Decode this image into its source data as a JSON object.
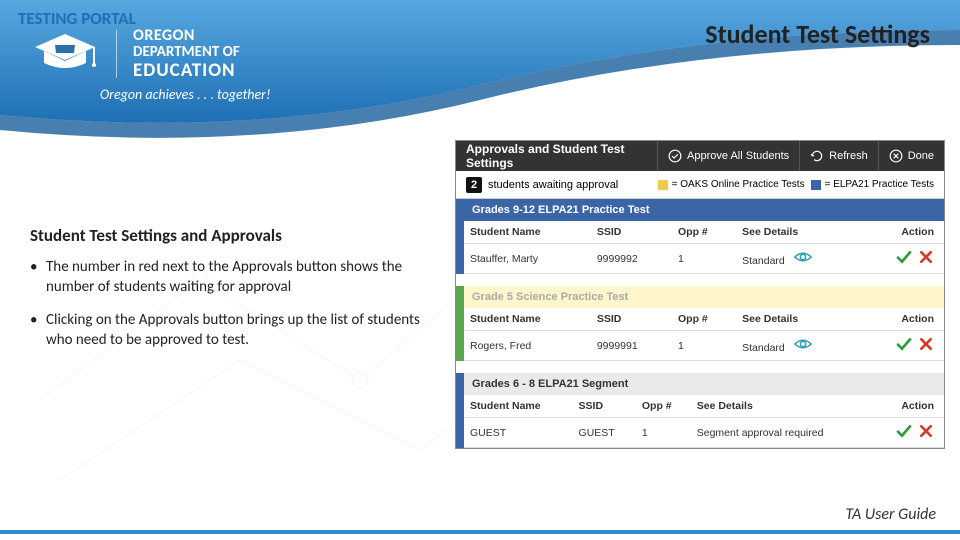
{
  "colors": {
    "brand_blue": "#3b8fd0",
    "brand_blue_dark": "#1f6fb5",
    "topbar_bg": "#333333",
    "hdr_blue": "#3a66a8",
    "hdr_yellow": "#fff6cc",
    "hdr_gray": "#eaeaea",
    "green": "#5aa64a",
    "check_green": "#2e9b3e",
    "x_red": "#d63a2a",
    "eye_teal": "#2a9faf",
    "legend_yellow": "#f2c94c",
    "legend_blue": "#3a66a8"
  },
  "header": {
    "section_title": "TESTING PORTAL",
    "logo": {
      "line1": "OREGON",
      "line2": "DEPARTMENT OF",
      "line3": "EDUCATION"
    },
    "tagline": "Oregon achieves . . . together!",
    "page_title": "Student Test Settings"
  },
  "left": {
    "subtitle": "Student Test Settings and Approvals",
    "bullets": [
      "The number in red next to the Approvals button shows the number of students waiting for approval",
      "Clicking on the Approvals button brings up the list of students who need to be approved to test."
    ]
  },
  "footer": {
    "cite": "TA User Guide"
  },
  "shot": {
    "topbar": {
      "title": "Approvals and Student Test Settings",
      "approve_all": "Approve All Students",
      "refresh": "Refresh",
      "done": "Done"
    },
    "legend": {
      "count": "2",
      "text": "students awaiting approval",
      "key1": "= OAKS Online Practice Tests",
      "key2": "= ELPA21 Practice Tests"
    },
    "sections": [
      {
        "strip": "blue",
        "header_class": "hdr-blue",
        "header": "Grades 9-12 ELPA21 Practice Test",
        "columns": [
          "Student Name",
          "SSID",
          "Opp #",
          "See Details",
          "Action"
        ],
        "rows": [
          {
            "name": "Stauffer, Marty",
            "ssid": "9999992",
            "opp": "1",
            "details": "Standard",
            "eye": true,
            "check": true,
            "x": true
          }
        ]
      },
      {
        "strip": "green",
        "header_class": "hdr-green",
        "header": "Grade 5 Science Practice Test",
        "columns": [
          "Student Name",
          "SSID",
          "Opp #",
          "See Details",
          "Action"
        ],
        "rows": [
          {
            "name": "Rogers, Fred",
            "ssid": "9999991",
            "opp": "1",
            "details": "Standard",
            "eye": true,
            "check": true,
            "x": true
          }
        ]
      },
      {
        "strip": "blue",
        "header_class": "hdr-gray",
        "header": "Grades 6 - 8 ELPA21 Segment",
        "columns": [
          "Student Name",
          "SSID",
          "Opp #",
          "See Details",
          "Action"
        ],
        "rows": [
          {
            "name": "GUEST",
            "ssid": "GUEST",
            "opp": "1",
            "details": "Segment approval required",
            "eye": false,
            "check": true,
            "x": true
          }
        ]
      }
    ]
  }
}
